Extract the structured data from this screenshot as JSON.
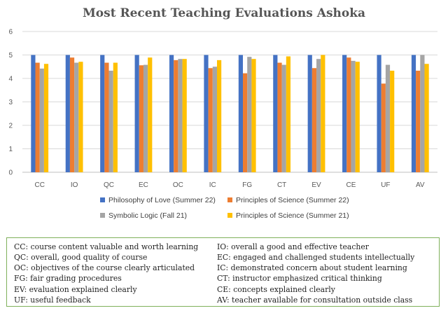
{
  "chart_data": {
    "type": "bar",
    "title": "Most Recent Teaching  Evaluations Ashoka",
    "categories": [
      "CC",
      "IO",
      "QC",
      "EC",
      "OC",
      "IC",
      "FG",
      "CT",
      "EV",
      "CE",
      "UF",
      "AV"
    ],
    "ylim": [
      0,
      6
    ],
    "yticks": [
      "0",
      "1",
      "2",
      "3",
      "4",
      "5",
      "6"
    ],
    "grid": true,
    "legend_position": "bottom",
    "series": [
      {
        "name": "Philosophy of Love (Summer 22)",
        "color": "#4472c4",
        "values": [
          5,
          5,
          5,
          5,
          5,
          5,
          5,
          5,
          5,
          5,
          5,
          5
        ]
      },
      {
        "name": "Principles of Science (Summer 22)",
        "color": "#ed7d31",
        "values": [
          4.67,
          4.89,
          4.67,
          4.56,
          4.78,
          4.44,
          4.22,
          4.67,
          4.44,
          4.89,
          3.78,
          4.33
        ]
      },
      {
        "name": "Symbolic Logic (Fall 21)",
        "color": "#a5a5a5",
        "values": [
          4.42,
          4.67,
          4.33,
          4.58,
          4.83,
          4.5,
          4.92,
          4.58,
          4.83,
          4.75,
          4.58,
          5
        ]
      },
      {
        "name": "Principles of Science (Summer 21)",
        "color": "#ffc000",
        "values": [
          4.62,
          4.71,
          4.67,
          4.89,
          4.83,
          4.78,
          4.83,
          4.94,
          5,
          4.71,
          4.33,
          4.62
        ]
      }
    ]
  },
  "glossary": [
    "CC: course content valuable and worth learning",
    "IO: overall a good and effective teacher",
    "QC: overall, good quality of course",
    "EC: engaged and challenged students intellectually",
    "OC: objectives of the course clearly articulated",
    "IC: demonstrated concern about student learning",
    "FG: fair grading procedures",
    "CT: instructor emphasized critical thinking",
    "EV: evaluation explained clearly",
    "CE: concepts explained clearly",
    "UF: useful feedback",
    "AV: teacher available for consultation outside class"
  ]
}
